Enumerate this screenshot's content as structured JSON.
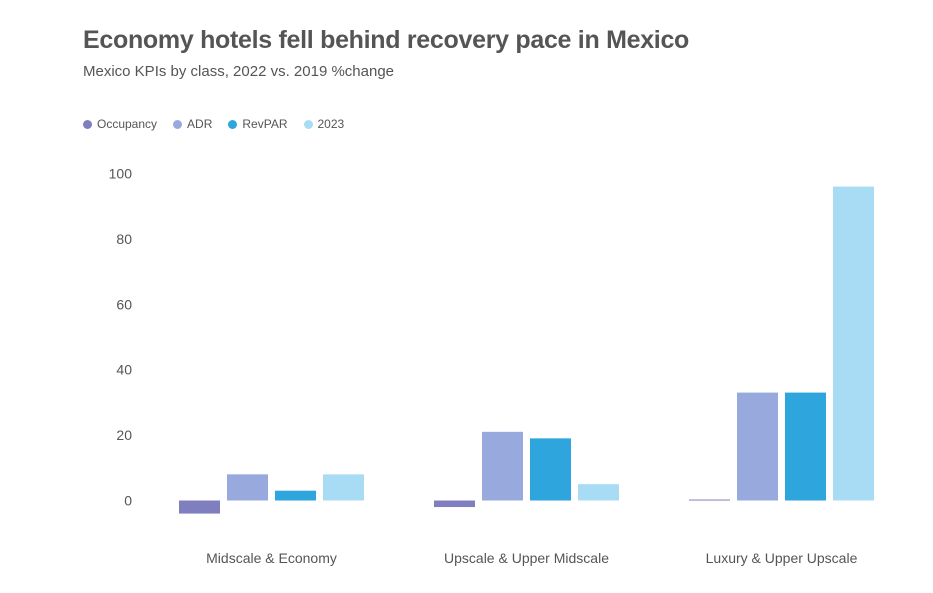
{
  "title": "Economy hotels fell behind recovery pace in Mexico",
  "subtitle": "Mexico KPIs by class, 2022 vs. 2019 %change",
  "colors": {
    "Occupancy": "#7f7fc0",
    "ADR": "#98a9dd",
    "RevPAR": "#2ea6dd",
    "2023": "#a8dcf5",
    "text": "#555555"
  },
  "chart_data": {
    "type": "bar",
    "title": "Economy hotels fell behind recovery pace in Mexico",
    "subtitle": "Mexico KPIs by class, 2022 vs. 2019 %change",
    "categories": [
      "Midscale & Economy",
      "Upscale & Upper Midscale",
      "Luxury & Upper Upscale"
    ],
    "series": [
      {
        "name": "Occupancy",
        "values": [
          -4,
          -2,
          0.3
        ]
      },
      {
        "name": "ADR",
        "values": [
          8,
          21,
          33
        ]
      },
      {
        "name": "RevPAR",
        "values": [
          3,
          19,
          33
        ]
      },
      {
        "name": "2023",
        "values": [
          8,
          5,
          96
        ]
      }
    ],
    "yticks": [
      0,
      20,
      40,
      60,
      80,
      100
    ],
    "ylim": [
      -5,
      100
    ],
    "grid": false,
    "legend": "top-left"
  }
}
